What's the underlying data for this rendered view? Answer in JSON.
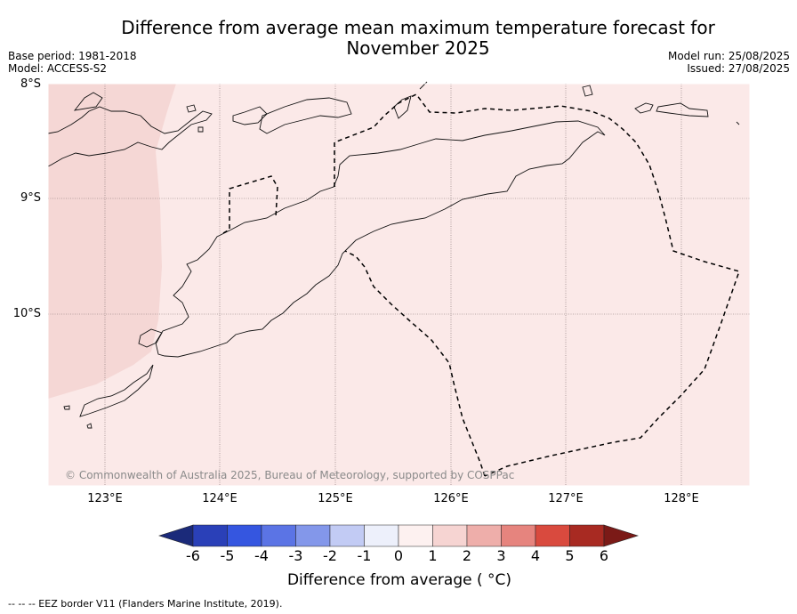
{
  "header": {
    "title_line1": "Difference from average mean maximum temperature forecast for",
    "title_line2": "November 2025",
    "base_period": "Base period: 1981-2018",
    "model": "Model: ACCESS-S2",
    "model_run": "Model run: 25/08/2025",
    "issued": "Issued: 27/08/2025"
  },
  "map": {
    "lat_labels": [
      "8°S",
      "9°S",
      "10°S"
    ],
    "lon_labels": [
      "123°E",
      "124°E",
      "125°E",
      "126°E",
      "127°E",
      "128°E"
    ],
    "copyright": "© Commonwealth of Australia 2025, Bureau of Meteorology, supported by COSPPac",
    "fill_colors": {
      "zone_0_to_1": "#fbe9e8",
      "zone_1_to_2": "#f5d7d5"
    }
  },
  "colorbar": {
    "ticks": [
      "-6",
      "-5",
      "-4",
      "-3",
      "-2",
      "-1",
      "0",
      "1",
      "2",
      "3",
      "4",
      "5",
      "6"
    ],
    "colors": [
      "#1b2a7a",
      "#2a40b8",
      "#3556e0",
      "#5b74e5",
      "#8397ea",
      "#c2cbf4",
      "#edf0fb",
      "#fdf1f0",
      "#f6d4d2",
      "#eeaeaa",
      "#e6847e",
      "#d94a3e",
      "#a82a22",
      "#7b1a17"
    ],
    "label": "Difference from average ( °C)"
  },
  "footer": {
    "legend": "--  --  -- EEZ border V11 (Flanders Marine Institute, 2019)."
  }
}
